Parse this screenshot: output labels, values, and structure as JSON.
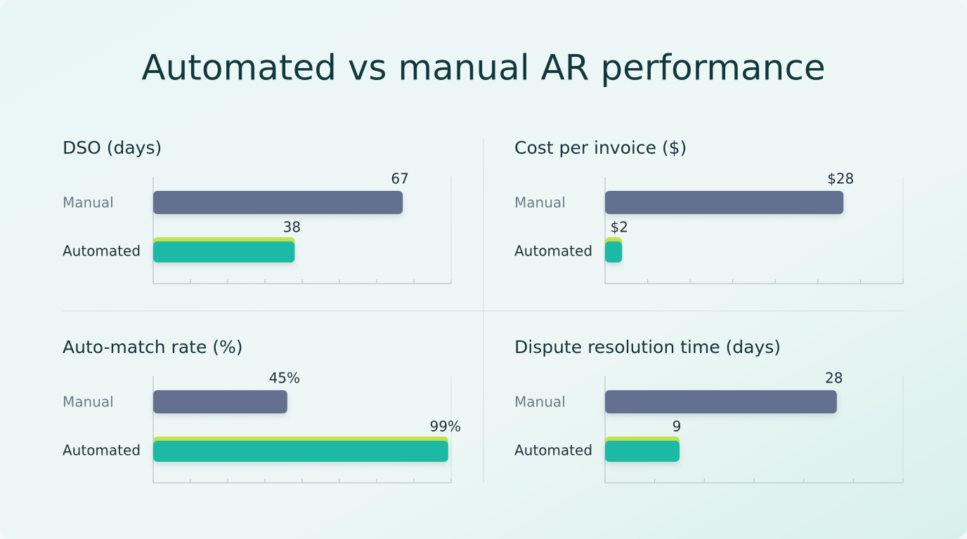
{
  "title": "Automated vs manual AR performance",
  "chart_data": [
    {
      "type": "bar",
      "orientation": "horizontal",
      "title": "DSO (days)",
      "categories": [
        "Manual",
        "Automated"
      ],
      "values": [
        67,
        38
      ],
      "colors": [
        "#63708f",
        "#1cb9a6"
      ],
      "highlight_color": "#c6e24a",
      "xlim": [
        0,
        80
      ],
      "xticks": [
        0,
        10,
        20,
        30,
        40,
        50,
        60,
        70,
        80
      ]
    },
    {
      "type": "bar",
      "orientation": "horizontal",
      "title": "Cost per invoice ($)",
      "categories": [
        "Manual",
        "Automated"
      ],
      "values": [
        28,
        2
      ],
      "value_labels": [
        "$28",
        "$2"
      ],
      "colors": [
        "#63708f",
        "#1cb9a6"
      ],
      "highlight_color": "#c6e24a",
      "xlim": [
        0,
        35
      ],
      "xticks": [
        0,
        5,
        10,
        15,
        20,
        25,
        30,
        35
      ]
    },
    {
      "type": "bar",
      "orientation": "horizontal",
      "title": "Auto-match rate (%)",
      "categories": [
        "Manual",
        "Automated"
      ],
      "values": [
        45,
        99
      ],
      "value_labels": [
        "45%",
        "99%"
      ],
      "colors": [
        "#63708f",
        "#1cb9a6"
      ],
      "highlight_color": "#c6e24a",
      "xlim": [
        0,
        100
      ],
      "xticks": [
        0,
        12.5,
        25,
        37.5,
        50,
        62.5,
        75,
        87.5,
        100
      ]
    },
    {
      "type": "bar",
      "orientation": "horizontal",
      "title": "Dispute resolution time (days)",
      "categories": [
        "Manual",
        "Automated"
      ],
      "values": [
        28,
        9
      ],
      "colors": [
        "#63708f",
        "#1cb9a6"
      ],
      "highlight_color": "#c6e24a",
      "xlim": [
        0,
        36
      ],
      "xticks": [
        0,
        6,
        12,
        18,
        24,
        30,
        36
      ]
    }
  ]
}
